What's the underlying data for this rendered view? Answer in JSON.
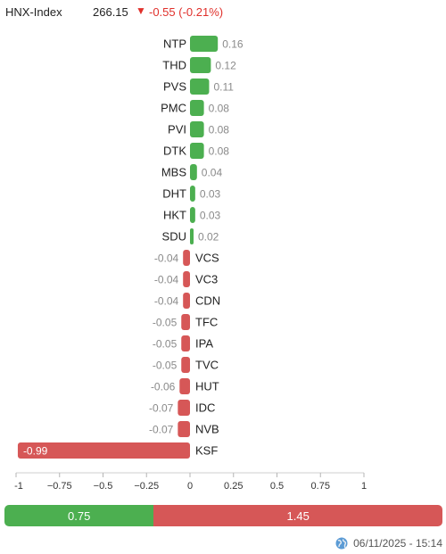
{
  "index": {
    "name": "HNX-Index",
    "value": "266.15",
    "arrow": "▼",
    "change": "-0.55 (-0.21%)"
  },
  "colors": {
    "positive": "#4caf50",
    "negative": "#d65757",
    "down_text": "#e0302b"
  },
  "chart_data": {
    "type": "bar",
    "orientation": "horizontal",
    "categories": [
      "NTP",
      "THD",
      "PVS",
      "PMC",
      "PVI",
      "DTK",
      "MBS",
      "DHT",
      "HKT",
      "SDU",
      "VCS",
      "VC3",
      "CDN",
      "TFC",
      "IPA",
      "TVC",
      "HUT",
      "IDC",
      "NVB",
      "KSF"
    ],
    "values": [
      0.16,
      0.12,
      0.11,
      0.08,
      0.08,
      0.08,
      0.04,
      0.03,
      0.03,
      0.02,
      -0.04,
      -0.04,
      -0.04,
      -0.05,
      -0.05,
      -0.05,
      -0.06,
      -0.07,
      -0.07,
      -0.99
    ],
    "value_labels": [
      "0.16",
      "0.12",
      "0.11",
      "0.08",
      "0.08",
      "0.08",
      "0.04",
      "0.03",
      "0.03",
      "0.02",
      "-0.04",
      "-0.04",
      "-0.04",
      "-0.05",
      "-0.05",
      "-0.05",
      "-0.06",
      "-0.07",
      "-0.07",
      "-0.99"
    ],
    "xlim": [
      -1,
      1
    ],
    "xticks": [
      -1,
      -0.75,
      -0.5,
      -0.25,
      0,
      0.25,
      0.5,
      0.75,
      1
    ],
    "xtick_labels": [
      "-1",
      "−0.75",
      "−0.5",
      "−0.25",
      "0",
      "0.25",
      "0.5",
      "0.75",
      "1"
    ],
    "grid": false
  },
  "summary": {
    "positive_label": "0.75",
    "negative_label": "1.45",
    "positive_value": 0.75,
    "negative_value": 1.45
  },
  "footer": {
    "timestamp": "06/11/2025 - 15:14",
    "icon": "globe-icon"
  }
}
